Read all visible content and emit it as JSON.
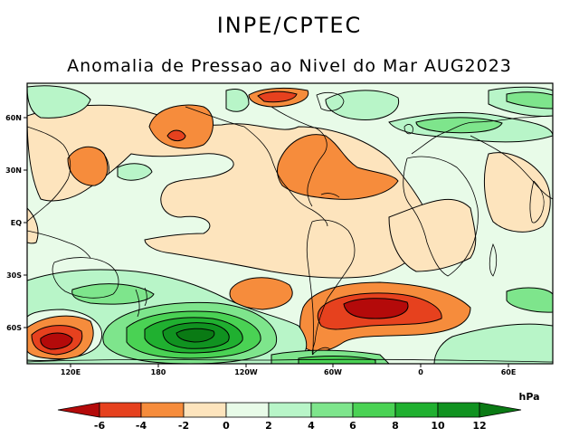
{
  "header": {
    "agency": "INPE/CPTEC",
    "title": "Anomalia de Pressao ao Nivel do Mar AUG2023"
  },
  "map": {
    "variable": "sea level pressure anomaly",
    "period": "AUG2023",
    "lat_ticks": [
      "60N",
      "30N",
      "EQ",
      "30S",
      "60S"
    ],
    "lon_ticks": [
      "120E",
      "180",
      "120W",
      "60W",
      "0",
      "60E"
    ]
  },
  "colorbar": {
    "unit": "hPa",
    "levels": [
      "-6",
      "-4",
      "-2",
      "0",
      "2",
      "4",
      "6",
      "8",
      "10",
      "12"
    ],
    "colors": {
      "lt_-6": "#b40a0a",
      "-6_-4": "#e6411e",
      "-4_-2": "#f68c3c",
      "-2_0": "#fde4bd",
      "0_2": "#e8fbe8",
      "2_4": "#b8f5c8",
      "4_6": "#7ee58c",
      "6_8": "#4ad254",
      "8_10": "#20b030",
      "10_12": "#109220",
      "gt_12": "#0a7a14"
    }
  }
}
